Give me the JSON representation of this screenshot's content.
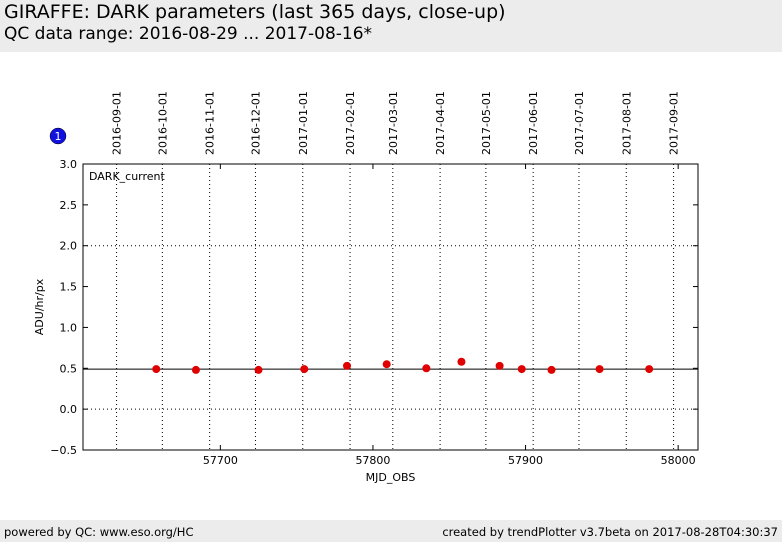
{
  "header": {
    "title": "GIRAFFE: DARK parameters (last 365 days, close-up)",
    "subtitle": "QC data range: 2016-08-29 ... 2017-08-16*"
  },
  "badge": "1",
  "footer": {
    "left": "powered by QC: www.eso.org/HC",
    "right": "created by trendPlotter v3.7beta on 2017-08-28T04:30:37"
  },
  "chart_data": {
    "type": "scatter",
    "series_label": "DARK_current",
    "x_label": "MJD_OBS",
    "y_label": "ADU/hr/px",
    "x": [
      57658,
      57684,
      57725,
      57755,
      57783,
      57809,
      57835,
      57858,
      57883,
      57897.5,
      57917,
      57948.5,
      57981
    ],
    "values": [
      0.49,
      0.48,
      0.48,
      0.49,
      0.53,
      0.55,
      0.5,
      0.58,
      0.53,
      0.49,
      0.48,
      0.49,
      0.49
    ],
    "color": "#e00000",
    "reference_line": 0.49,
    "xlim": [
      57610,
      58013
    ],
    "ylim": [
      -0.5,
      3.0
    ],
    "xticks": [
      57700,
      57800,
      57900,
      58000
    ],
    "yticks": [
      {
        "value": -0.5,
        "label": "−0.5"
      },
      {
        "value": 0,
        "label": "0.0"
      },
      0.5,
      {
        "value": 1,
        "label": "1.0"
      },
      1.5,
      {
        "value": 2,
        "label": "2.0"
      },
      2.5,
      {
        "value": 3,
        "label": "3.0"
      }
    ],
    "y_grid": [
      0,
      2
    ],
    "date_ticks": [
      {
        "value": 57632,
        "label": "2016-09-01"
      },
      {
        "value": 57662,
        "label": "2016-10-01"
      },
      {
        "value": 57693,
        "label": "2016-11-01"
      },
      {
        "value": 57723,
        "label": "2016-12-01"
      },
      {
        "value": 57754,
        "label": "2017-01-01"
      },
      {
        "value": 57785,
        "label": "2017-02-01"
      },
      {
        "value": 57813,
        "label": "2017-03-01"
      },
      {
        "value": 57844,
        "label": "2017-04-01"
      },
      {
        "value": 57874,
        "label": "2017-05-01"
      },
      {
        "value": 57905,
        "label": "2017-06-01"
      },
      {
        "value": 57935,
        "label": "2017-07-01"
      },
      {
        "value": 57966,
        "label": "2017-08-01"
      },
      {
        "value": 57997,
        "label": "2017-09-01"
      }
    ]
  }
}
